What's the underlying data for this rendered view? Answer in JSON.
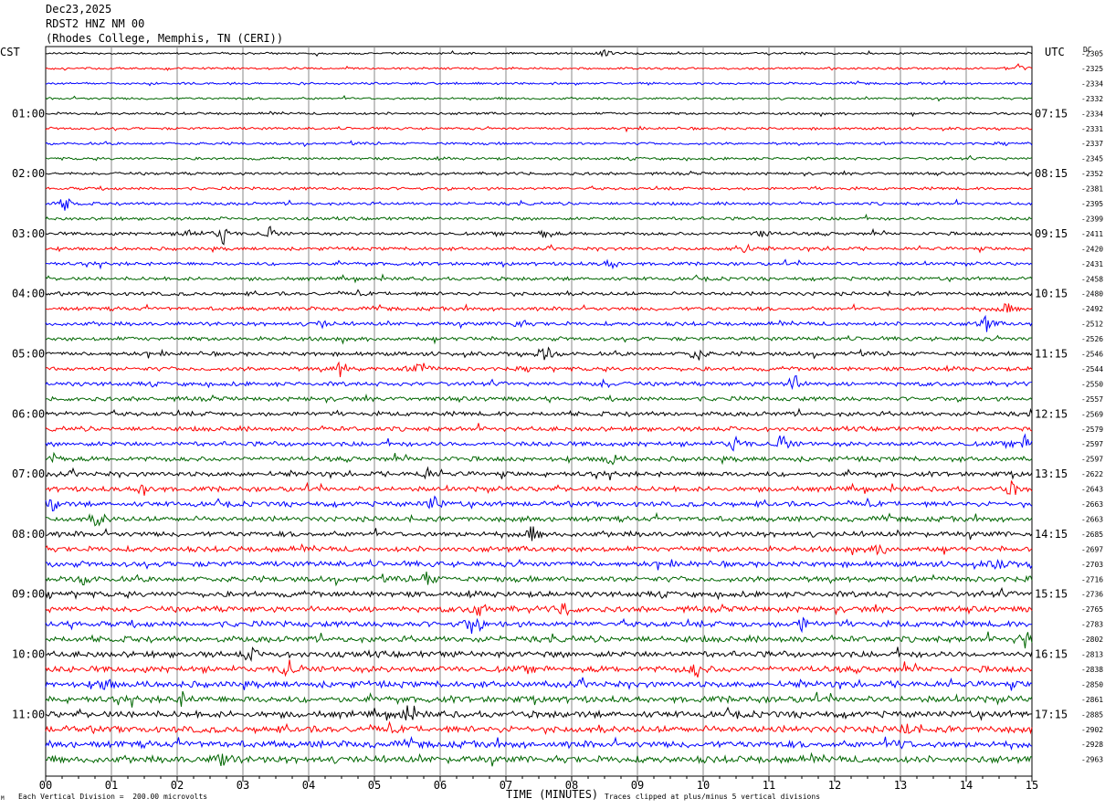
{
  "header": {
    "date": "Dec23,2025",
    "station": "RDST2 HNZ NM 00",
    "location": "(Rhodes College, Memphis, TN (CERI))"
  },
  "left_timezone": "CST",
  "right_timezone": "UTC",
  "dc_label": "DC",
  "footer": {
    "scale": "Each Vertical Division =  200.00 microvolts",
    "xlabel": "TIME (MINUTES)",
    "clip_note": "Traces clipped at plus/minus 5 vertical divisions",
    "corner_mark": "M"
  },
  "colors": {
    "black": "#000000",
    "red": "#ff0000",
    "blue": "#0000ff",
    "green": "#006600",
    "grid": "#888888"
  },
  "chart_data": {
    "type": "line",
    "title": "Dec23,2025 RDST2 HNZ NM 00 (Rhodes College, Memphis, TN (CERI))",
    "xlabel": "TIME (MINUTES)",
    "ylabel": "",
    "x_ticks": [
      "00",
      "01",
      "02",
      "03",
      "04",
      "05",
      "06",
      "07",
      "08",
      "09",
      "10",
      "11",
      "12",
      "13",
      "14",
      "15"
    ],
    "xlim": [
      0,
      15
    ],
    "trace_color_cycle": [
      "black",
      "red",
      "blue",
      "green"
    ],
    "left_time_labels": [
      "01:00",
      "02:00",
      "03:00",
      "04:00",
      "05:00",
      "06:00",
      "07:00",
      "08:00",
      "09:00",
      "10:00",
      "11:00"
    ],
    "right_time_labels": [
      "07:15",
      "08:15",
      "09:15",
      "10:15",
      "11:15",
      "12:15",
      "13:15",
      "14:15",
      "15:15",
      "16:15",
      "17:15"
    ],
    "dc_offsets": [
      "-2305",
      "-2325",
      "-2334",
      "-2332",
      "-2334",
      "-2331",
      "-2337",
      "-2345",
      "-2352",
      "-2381",
      "-2395",
      "-2399",
      "-2411",
      "-2420",
      "-2431",
      "-2458",
      "-2480",
      "-2492",
      "-2512",
      "-2526",
      "-2546",
      "-2544",
      "-2550",
      "-2557",
      "-2569",
      "-2579",
      "-2597",
      "-2597",
      "-2622",
      "-2643",
      "-2663",
      "-2663",
      "-2685",
      "-2697",
      "-2703",
      "-2716",
      "-2736",
      "-2765",
      "-2783",
      "-2802",
      "-2813",
      "-2838",
      "-2850",
      "-2861",
      "-2885",
      "-2902",
      "-2928",
      "-2963"
    ],
    "events": [
      {
        "trace": 0,
        "minute": 8.5,
        "amp": 5
      },
      {
        "trace": 1,
        "minute": 14.8,
        "amp": 6
      },
      {
        "trace": 10,
        "minute": 0.3,
        "amp": 8
      },
      {
        "trace": 12,
        "minute": 2.2,
        "amp": 7
      },
      {
        "trace": 12,
        "minute": 2.7,
        "amp": 12
      },
      {
        "trace": 12,
        "minute": 3.4,
        "amp": 8
      },
      {
        "trace": 12,
        "minute": 7.6,
        "amp": 6
      },
      {
        "trace": 12,
        "minute": 10.9,
        "amp": 6
      },
      {
        "trace": 13,
        "minute": 10.6,
        "amp": 9
      },
      {
        "trace": 14,
        "minute": 8.6,
        "amp": 6
      },
      {
        "trace": 17,
        "minute": 14.6,
        "amp": 7
      },
      {
        "trace": 18,
        "minute": 14.3,
        "amp": 9
      },
      {
        "trace": 18,
        "minute": 7.2,
        "amp": 5
      },
      {
        "trace": 18,
        "minute": 4.2,
        "amp": 4
      },
      {
        "trace": 20,
        "minute": 7.6,
        "amp": 11
      },
      {
        "trace": 20,
        "minute": 9.9,
        "amp": 9
      },
      {
        "trace": 21,
        "minute": 4.5,
        "amp": 10
      },
      {
        "trace": 21,
        "minute": 5.7,
        "amp": 10
      },
      {
        "trace": 22,
        "minute": 11.4,
        "amp": 11
      },
      {
        "trace": 22,
        "minute": 8.5,
        "amp": 5
      },
      {
        "trace": 26,
        "minute": 10.5,
        "amp": 10
      },
      {
        "trace": 26,
        "minute": 11.2,
        "amp": 11
      },
      {
        "trace": 26,
        "minute": 14.9,
        "amp": 8
      },
      {
        "trace": 27,
        "minute": 8.6,
        "amp": 7
      },
      {
        "trace": 27,
        "minute": 0.1,
        "amp": 7
      },
      {
        "trace": 28,
        "minute": 5.8,
        "amp": 6
      },
      {
        "trace": 29,
        "minute": 1.5,
        "amp": 8
      },
      {
        "trace": 29,
        "minute": 14.7,
        "amp": 8
      },
      {
        "trace": 30,
        "minute": 5.9,
        "amp": 10
      },
      {
        "trace": 30,
        "minute": 0.1,
        "amp": 8
      },
      {
        "trace": 31,
        "minute": 0.8,
        "amp": 9
      },
      {
        "trace": 32,
        "minute": 7.4,
        "amp": 8
      },
      {
        "trace": 33,
        "minute": 12.7,
        "amp": 7
      },
      {
        "trace": 34,
        "minute": 14.5,
        "amp": 7
      },
      {
        "trace": 35,
        "minute": 5.8,
        "amp": 8
      },
      {
        "trace": 35,
        "minute": 0.6,
        "amp": 6
      },
      {
        "trace": 37,
        "minute": 6.6,
        "amp": 9
      },
      {
        "trace": 37,
        "minute": 7.9,
        "amp": 8
      },
      {
        "trace": 38,
        "minute": 6.5,
        "amp": 12
      },
      {
        "trace": 38,
        "minute": 11.5,
        "amp": 8
      },
      {
        "trace": 39,
        "minute": 14.9,
        "amp": 10
      },
      {
        "trace": 40,
        "minute": 3.1,
        "amp": 7
      },
      {
        "trace": 41,
        "minute": 3.7,
        "amp": 12
      },
      {
        "trace": 41,
        "minute": 9.9,
        "amp": 8
      },
      {
        "trace": 42,
        "minute": 0.9,
        "amp": 8
      },
      {
        "trace": 43,
        "minute": 2.1,
        "amp": 8
      },
      {
        "trace": 44,
        "minute": 5.5,
        "amp": 9
      },
      {
        "trace": 45,
        "minute": 13.1,
        "amp": 6
      },
      {
        "trace": 46,
        "minute": 13.0,
        "amp": 6
      },
      {
        "trace": 47,
        "minute": 2.7,
        "amp": 9
      }
    ]
  }
}
